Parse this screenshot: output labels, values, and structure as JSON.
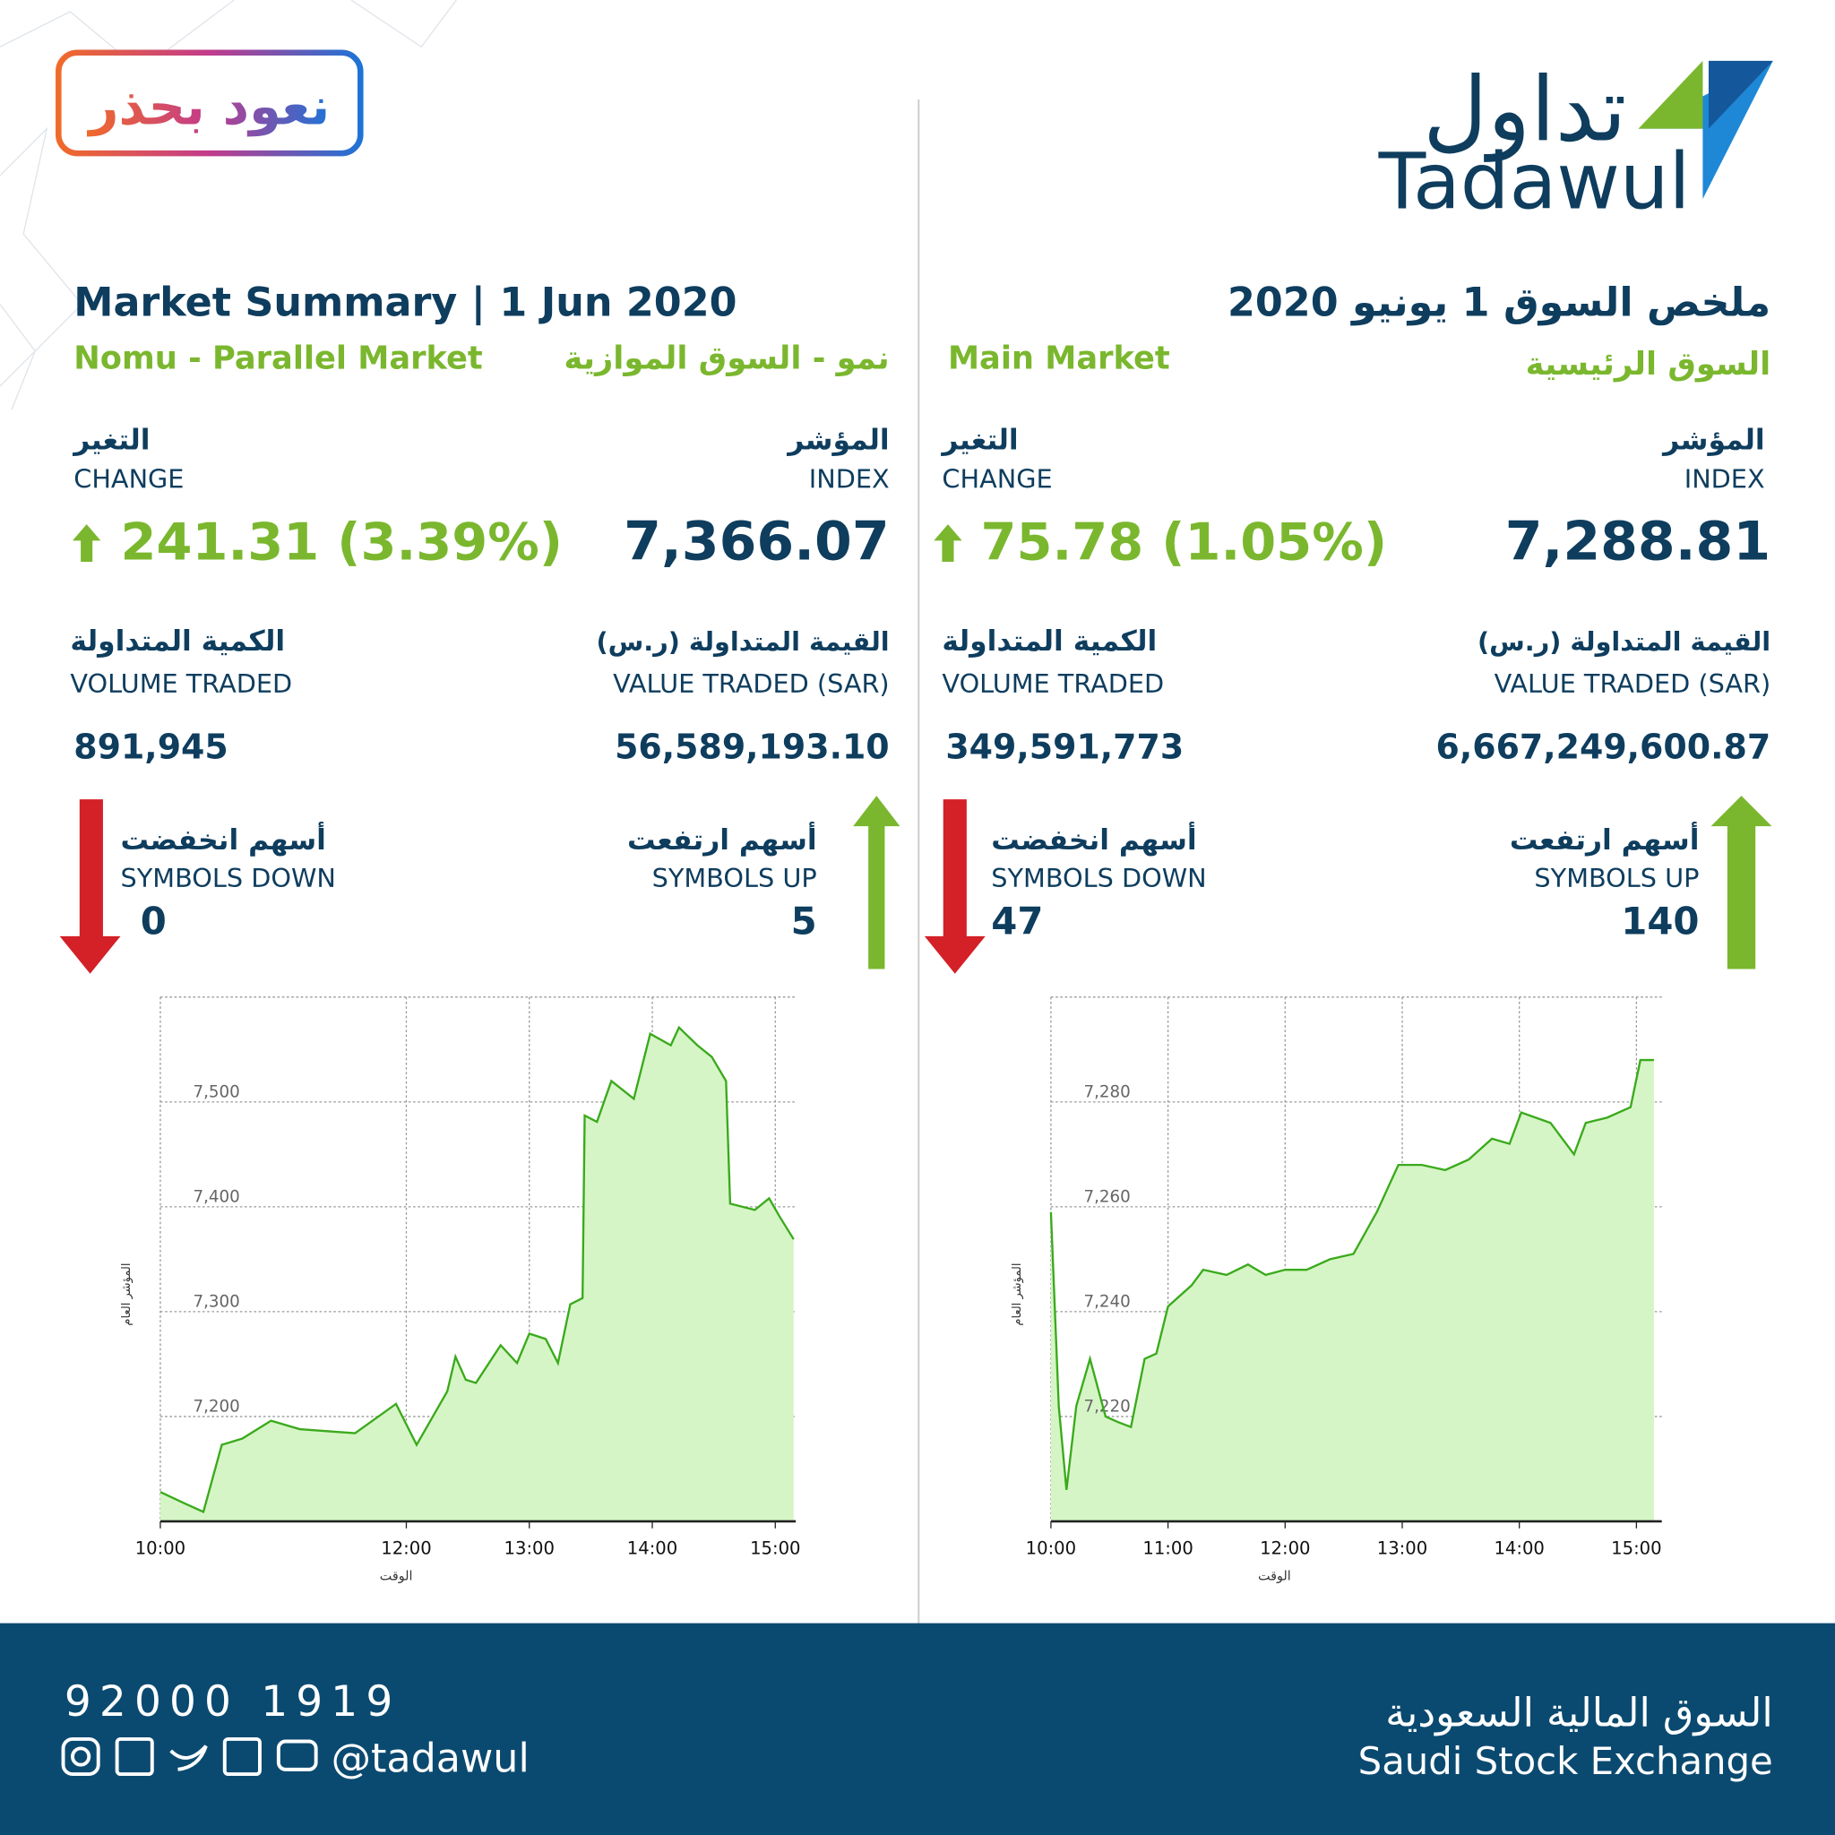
{
  "header": {
    "logo_arabic": "تداول",
    "logo_english": "Tadawul",
    "badge": "نعود بحذر",
    "title_english": "Market Summary | 1 Jun 2020",
    "title_arabic": "ملخص السوق 1 يونيو 2020"
  },
  "panels": [
    {
      "market_english": "Nomu - Parallel Market",
      "market_arabic": "نمو - السوق الموازية",
      "index_label_arabic": "المؤشر",
      "index_label_english": "INDEX",
      "index": "7,366.07",
      "change_label_arabic": "التغير",
      "change_label_english": "CHANGE",
      "change": "241.31 (3.39%)",
      "value_label_arabic": "القيمة المتداولة (ر.س)",
      "value_label_english": "VALUE TRADED (SAR)",
      "value_traded": "56,589,193.10",
      "volume_label_arabic": "الكمية المتداولة",
      "volume_label_english": "VOLUME TRADED",
      "volume_traded": "891,945",
      "up_label_arabic": "أسهم ارتفعت",
      "up_label_english": "SYMBOLS UP",
      "symbols_up": "5",
      "down_label_arabic": "أسهم انخفضت",
      "down_label_english": "SYMBOLS DOWN",
      "symbols_down": "0"
    },
    {
      "market_english": "Main Market",
      "market_arabic": "السوق الرئيسية",
      "index_label_arabic": "المؤشر",
      "index_label_english": "INDEX",
      "index": "7,288.81",
      "change_label_arabic": "التغير",
      "change_label_english": "CHANGE",
      "change": "75.78 (1.05%)",
      "value_label_arabic": "القيمة المتداولة (ر.س)",
      "value_label_english": "VALUE TRADED (SAR)",
      "value_traded": "6,667,249,600.87",
      "volume_label_arabic": "الكمية المتداولة",
      "volume_label_english": "VOLUME TRADED",
      "volume_traded": "349,591,773",
      "up_label_arabic": "أسهم ارتفعت",
      "up_label_english": "SYMBOLS UP",
      "symbols_up": "140",
      "down_label_arabic": "أسهم انخفضت",
      "down_label_english": "SYMBOLS DOWN",
      "symbols_down": "47"
    }
  ],
  "chart_data": [
    {
      "type": "line",
      "x_label": "الوقت",
      "y_label": "المؤشر العام",
      "color": "#3aaa1c",
      "fill_color": "#d6f5c6",
      "grid": true,
      "x": [
        600,
        612,
        621,
        630,
        640,
        654,
        668,
        695,
        715,
        725,
        740,
        744,
        749,
        754,
        766,
        774,
        780,
        788,
        794,
        800,
        806,
        807,
        813,
        820,
        831,
        839,
        849,
        853,
        862,
        869,
        876,
        878,
        890,
        897,
        902,
        909
      ],
      "values": [
        7128,
        7117,
        7109,
        7173,
        7179,
        7196,
        7188,
        7184,
        7212,
        7173,
        7224,
        7257,
        7235,
        7232,
        7268,
        7251,
        7279,
        7274,
        7251,
        7307,
        7313,
        7487,
        7481,
        7520,
        7503,
        7565,
        7554,
        7571,
        7554,
        7543,
        7520,
        7403,
        7397,
        7408,
        7391,
        7369
      ],
      "xlim": [
        600,
        910
      ],
      "xticks": [
        {
          "value": 600,
          "label": "10:00"
        },
        {
          "value": 720,
          "label": "12:00"
        },
        {
          "value": 780,
          "label": "13:00"
        },
        {
          "value": 840,
          "label": "14:00"
        },
        {
          "value": 900,
          "label": "15:00"
        }
      ],
      "ylim": [
        7100,
        7600
      ],
      "yticks": [
        {
          "value": 7200,
          "label": "7,200"
        },
        {
          "value": 7300,
          "label": "7,300"
        },
        {
          "value": 7400,
          "label": "7,400"
        },
        {
          "value": 7500,
          "label": "7,500"
        }
      ]
    },
    {
      "type": "line",
      "x_label": "الوقت",
      "y_label": "المؤشر العام",
      "color": "#3aaa1c",
      "fill_color": "#d6f5c6",
      "grid": true,
      "x": [
        600,
        604,
        608,
        613,
        620,
        628,
        634,
        641,
        648,
        654,
        660,
        672,
        678,
        690,
        701,
        710,
        720,
        731,
        743,
        755,
        767,
        778,
        790,
        802,
        814,
        826,
        835,
        841,
        856,
        868,
        874,
        885,
        897,
        902,
        909
      ],
      "values": [
        7259,
        7222,
        7206,
        7222,
        7231,
        7220,
        7219,
        7218,
        7231,
        7232,
        7241,
        7245,
        7248,
        7247,
        7249,
        7247,
        7248,
        7248,
        7250,
        7251,
        7259,
        7268,
        7268,
        7267,
        7269,
        7273,
        7272,
        7278,
        7276,
        7270,
        7276,
        7277,
        7279,
        7288,
        7288
      ],
      "xlim": [
        600,
        913
      ],
      "xticks": [
        {
          "value": 600,
          "label": "10:00"
        },
        {
          "value": 660,
          "label": "11:00"
        },
        {
          "value": 720,
          "label": "12:00"
        },
        {
          "value": 780,
          "label": "13:00"
        },
        {
          "value": 840,
          "label": "14:00"
        },
        {
          "value": 900,
          "label": "15:00"
        }
      ],
      "ylim": [
        7200,
        7300
      ],
      "yticks": [
        {
          "value": 7220,
          "label": "7,220"
        },
        {
          "value": 7240,
          "label": "7,240"
        },
        {
          "value": 7260,
          "label": "7,260"
        },
        {
          "value": 7280,
          "label": "7,280"
        }
      ]
    }
  ],
  "footer": {
    "phone": "92000 1919",
    "handle": "@tadawul",
    "exchange_arabic": "السوق المالية السعودية",
    "exchange_english": "Saudi Stock Exchange"
  }
}
